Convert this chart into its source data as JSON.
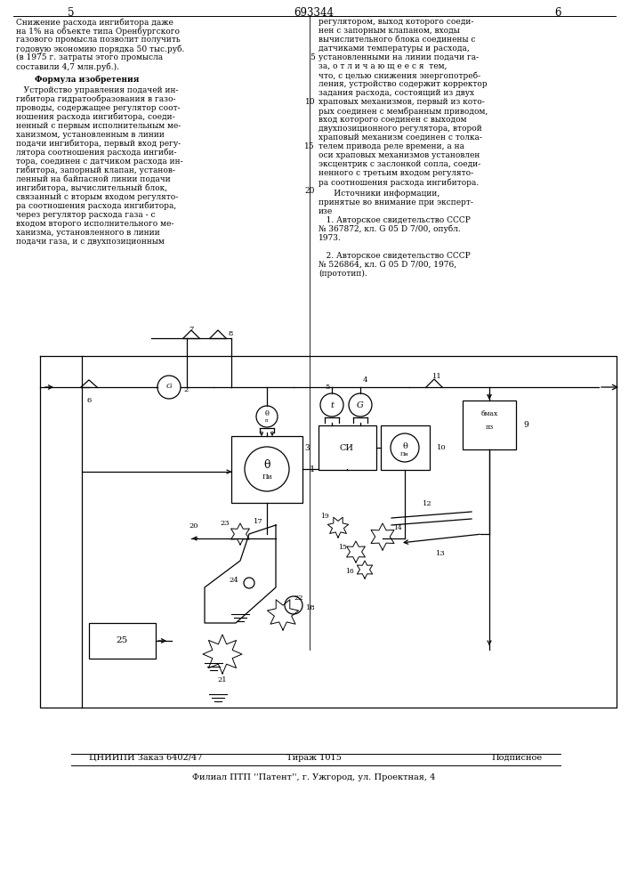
{
  "page_number_left": "5",
  "patent_number": "693344",
  "page_number_right": "6",
  "left_col_top": [
    "Снижение расхода ингибитора даже",
    "на 1% на объекте типа Оренбургского",
    "газового промысла позволит получить",
    "годовую экономию порядка 50 тыс.руб.",
    "(в 1975 г. затраты этого промысла",
    "составили 4,7 млн.руб.)."
  ],
  "formula_title": "Формула изобретения",
  "formula_lines": [
    "   Устройство управления подачей ин-",
    "гибитора гидратообразования в газо-",
    "проводы, содержащее регулятор соот-",
    "ношения расхода ингибитора, соеди-",
    "ненный с первым исполнительным ме-",
    "ханизмом, установленным в линии",
    "подачи ингибитора, первый вход регу-",
    "лятора соотношения расхода ингиби-",
    "тора, соединен с датчиком расхода ин-",
    "гибитора, запорный клапан, установ-",
    "ленный на байпасной линии подачи",
    "ингибитора, вычислительный блок,",
    "связанный с вторым входом регулято-",
    "ра соотношения расхода ингибитора,",
    "через регулятор расхода газа - с",
    "входом второго исполнительного ме-",
    "ханизма, установленного в линии",
    "подачи газа, и с двухпозиционным"
  ],
  "right_col_lines": [
    "регулятором, выход которого соеди-",
    "нен с запорным клапаном, входы",
    "вычислительного блока соединены с",
    "датчиками температуры и расхода,",
    "установленными на линии подачи га-",
    "за, о т л и ч а ю щ е е с я  тем,",
    "что, с целью снижения энергопотреб-",
    "ления, устройство содержит корректор",
    "задания расхода, состоящий из двух",
    "храповых механизмов, первый из кото-",
    "рых соединен с мембранным приводом,",
    "вход которого соединен с выходом",
    "двухпозиционного регулятора, второй",
    "храповый механизм соединен с толка-",
    "телем привода реле времени, а на",
    "оси храповых механизмов установлен",
    "эксцентрик с заслонкой сопла, соеди-",
    "ненного с третьим входом регулято-",
    "ра соотношения расхода ингибитора."
  ],
  "sources_header": "      Источники информации,",
  "sources_lines": [
    "принятые во внимание при эксперт-",
    "изе",
    "   1. Авторское свидетельство СССР",
    "№ 367872, кл. G 05 D 7/00, опубл.",
    "1973.",
    "",
    "   2. Авторское свидетельство СССР",
    "№ 526864, кл. G 05 D 7/00, 1976,",
    "(прототип)."
  ],
  "line_numbers_right": [
    [
      5,
      "5"
    ],
    [
      10,
      "10"
    ],
    [
      15,
      "15"
    ],
    [
      20,
      "20"
    ]
  ],
  "bottom_line1_left": "ЦНИИПИ Заказ 6402/47",
  "bottom_line1_center": "Тираж 1015",
  "bottom_line1_right": "Подписное",
  "bottom_line2": "Филиал ПТП ''Патент'', г. Ужгород, ул. Проектная, 4",
  "bg_color": "#ffffff"
}
